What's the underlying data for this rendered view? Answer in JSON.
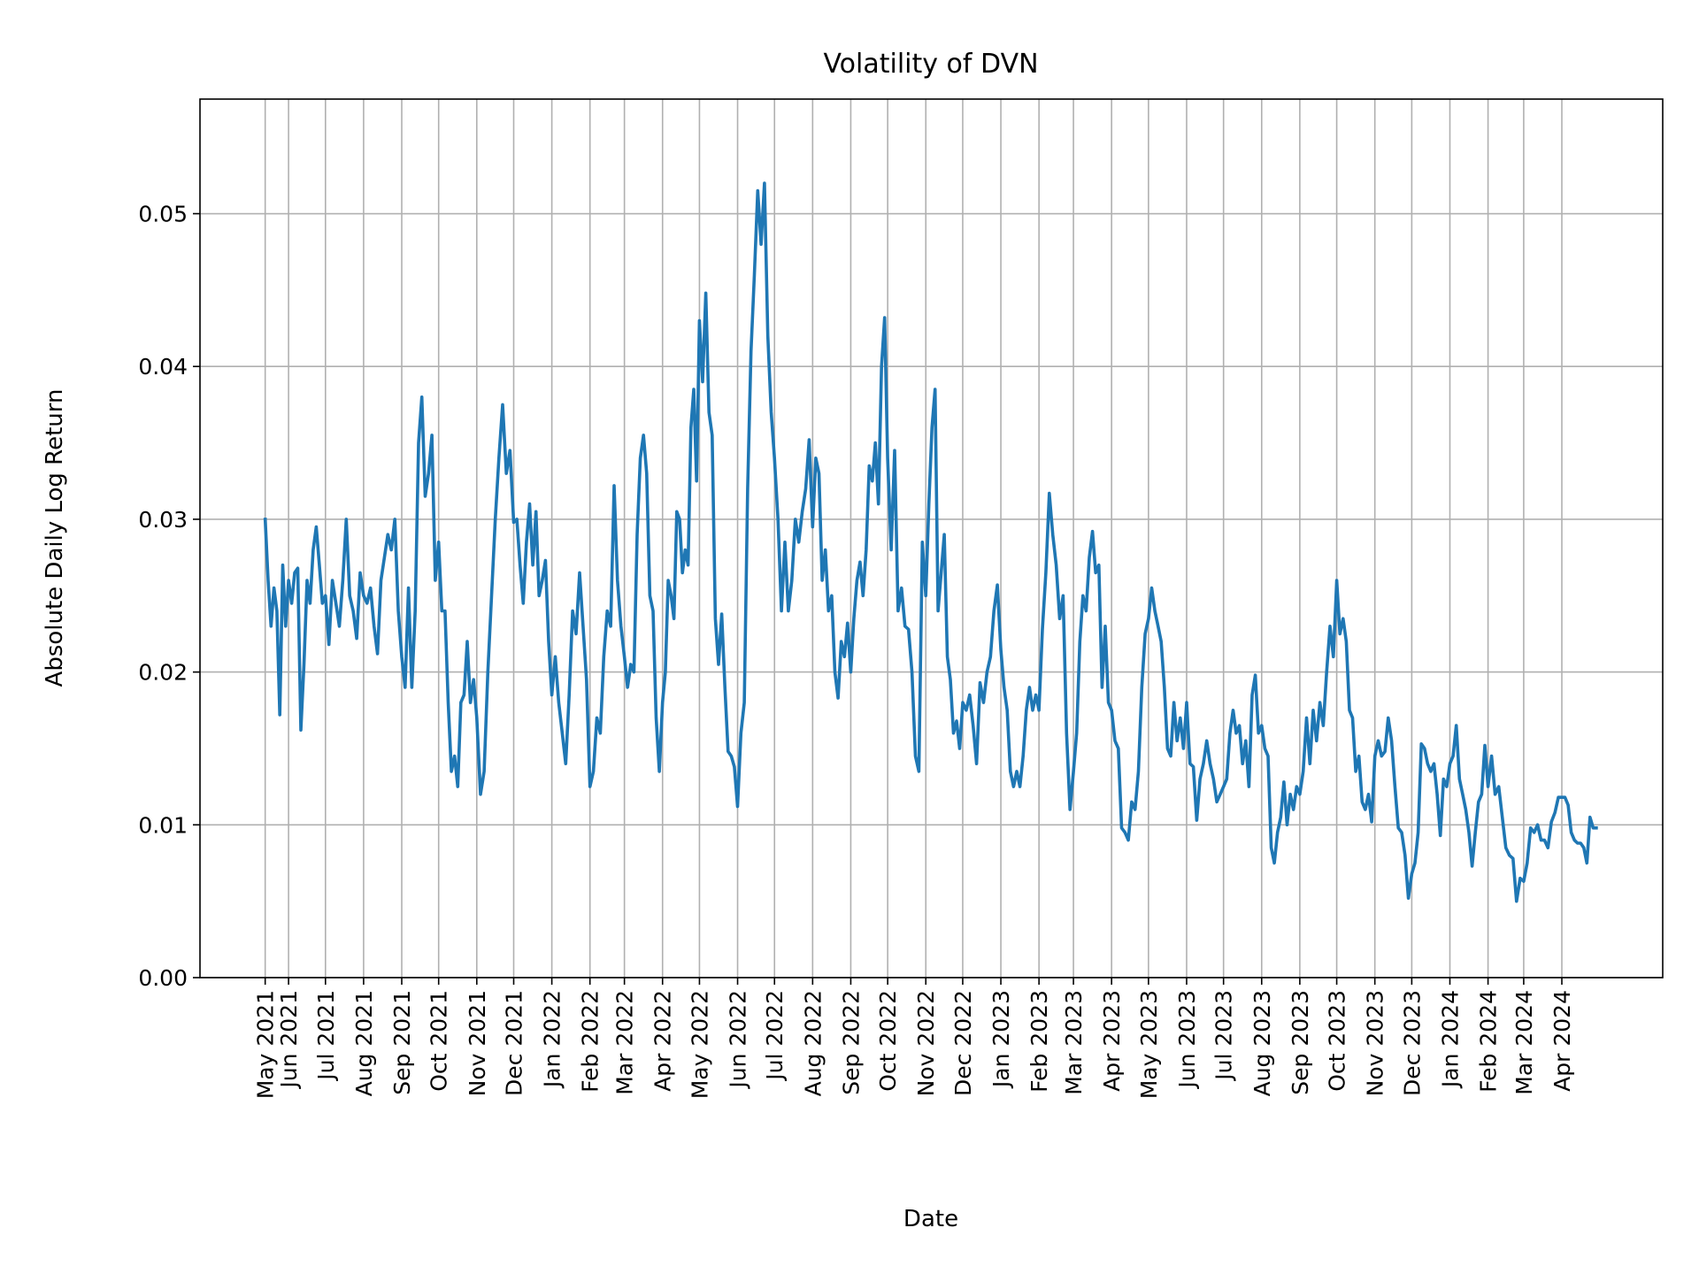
{
  "chart_data": {
    "type": "line",
    "title": "Volatility of DVN",
    "xlabel": "Date",
    "ylabel": "Absolute Daily Log Return",
    "xlim": [
      "2021-03-21",
      "2024-06-22"
    ],
    "ylim": [
      0,
      0.0575
    ],
    "grid": true,
    "colors": {
      "line": "#1f77b4",
      "grid": "#b0b0b0",
      "axes": "#000000"
    },
    "yticks": [
      0.0,
      0.01,
      0.02,
      0.03,
      0.04,
      0.05
    ],
    "ytick_labels": [
      "0.00",
      "0.01",
      "0.02",
      "0.03",
      "0.04",
      "0.05"
    ],
    "xticks": [
      "2021-05-13",
      "2021-06-01",
      "2021-07-01",
      "2021-08-01",
      "2021-09-01",
      "2021-10-01",
      "2021-11-01",
      "2021-12-01",
      "2022-01-01",
      "2022-02-01",
      "2022-03-01",
      "2022-04-01",
      "2022-05-01",
      "2022-06-01",
      "2022-07-01",
      "2022-08-01",
      "2022-09-01",
      "2022-10-01",
      "2022-11-01",
      "2022-12-01",
      "2023-01-01",
      "2023-02-01",
      "2023-03-01",
      "2023-04-01",
      "2023-05-01",
      "2023-06-01",
      "2023-07-01",
      "2023-08-01",
      "2023-09-01",
      "2023-10-01",
      "2023-11-01",
      "2023-12-01",
      "2024-01-01",
      "2024-02-01",
      "2024-03-01",
      "2024-04-01"
    ],
    "xtick_labels": [
      "May 2021",
      "Jun 2021",
      "Jul 2021",
      "Aug 2021",
      "Sep 2021",
      "Oct 2021",
      "Nov 2021",
      "Dec 2021",
      "Jan 2022",
      "Feb 2022",
      "Mar 2022",
      "Apr 2022",
      "May 2022",
      "Jun 2022",
      "Jul 2022",
      "Aug 2022",
      "Sep 2022",
      "Oct 2022",
      "Nov 2022",
      "Dec 2022",
      "Jan 2023",
      "Feb 2023",
      "Mar 2023",
      "Apr 2023",
      "May 2023",
      "Jun 2023",
      "Jul 2023",
      "Aug 2023",
      "Sep 2023",
      "Oct 2023",
      "Nov 2023",
      "Dec 2023",
      "Jan 2024",
      "Feb 2024",
      "Mar 2024",
      "Apr 2024"
    ],
    "first_date": "2021-05-13",
    "last_date": "2024-04-29",
    "series_by_month": [
      {
        "month": "2021-05",
        "values": [
          0.03,
          0.026,
          0.023,
          0.0255,
          0.024,
          0.0172,
          0.027,
          0.023
        ]
      },
      {
        "month": "2021-06",
        "values": [
          0.026,
          0.0245,
          0.0265,
          0.0268,
          0.0162,
          0.0205,
          0.026,
          0.0245,
          0.028,
          0.0295,
          0.027,
          0.0245
        ]
      },
      {
        "month": "2021-07",
        "values": [
          0.025,
          0.0218,
          0.026,
          0.0245,
          0.023,
          0.026,
          0.03,
          0.025,
          0.024,
          0.0222,
          0.0265
        ]
      },
      {
        "month": "2021-08",
        "values": [
          0.025,
          0.0245,
          0.0255,
          0.023,
          0.0212,
          0.026,
          0.0275,
          0.029,
          0.028,
          0.03,
          0.024
        ]
      },
      {
        "month": "2021-09",
        "values": [
          0.021,
          0.019,
          0.0255,
          0.019,
          0.024,
          0.035,
          0.038,
          0.0315,
          0.033,
          0.0355,
          0.026
        ]
      },
      {
        "month": "2021-10",
        "values": [
          0.0285,
          0.024,
          0.024,
          0.018,
          0.0135,
          0.0145,
          0.0125,
          0.018,
          0.0185,
          0.022,
          0.018,
          0.0195
        ]
      },
      {
        "month": "2021-11",
        "values": [
          0.017,
          0.012,
          0.0135,
          0.02,
          0.025,
          0.03,
          0.034,
          0.0375,
          0.033,
          0.0345
        ]
      },
      {
        "month": "2021-12",
        "values": [
          0.0298,
          0.03,
          0.027,
          0.0245,
          0.0285,
          0.031,
          0.027,
          0.0305,
          0.025,
          0.026,
          0.0273,
          0.022
        ]
      },
      {
        "month": "2022-01",
        "values": [
          0.0185,
          0.021,
          0.018,
          0.016,
          0.014,
          0.0185,
          0.024,
          0.0225,
          0.0265,
          0.023,
          0.0195
        ]
      },
      {
        "month": "2022-02",
        "values": [
          0.0125,
          0.0135,
          0.017,
          0.016,
          0.021,
          0.024,
          0.023,
          0.0322,
          0.026,
          0.023
        ]
      },
      {
        "month": "2022-03",
        "values": [
          0.021,
          0.019,
          0.0205,
          0.02,
          0.029,
          0.034,
          0.0355,
          0.033,
          0.025,
          0.024,
          0.017,
          0.0135
        ]
      },
      {
        "month": "2022-04",
        "values": [
          0.018,
          0.02,
          0.026,
          0.025,
          0.0235,
          0.0305,
          0.03,
          0.0265,
          0.028,
          0.027,
          0.036,
          0.0385,
          0.0325
        ]
      },
      {
        "month": "2022-05",
        "values": [
          0.043,
          0.039,
          0.0448,
          0.037,
          0.0355,
          0.0235,
          0.0205,
          0.0238,
          0.019,
          0.0148,
          0.0145,
          0.0138
        ]
      },
      {
        "month": "2022-06",
        "values": [
          0.0112,
          0.016,
          0.018,
          0.032,
          0.041,
          0.046,
          0.0515,
          0.048,
          0.052,
          0.042,
          0.037
        ]
      },
      {
        "month": "2022-07",
        "values": [
          0.034,
          0.03,
          0.024,
          0.0285,
          0.024,
          0.026,
          0.03,
          0.0285,
          0.0305,
          0.032,
          0.0352
        ]
      },
      {
        "month": "2022-08",
        "values": [
          0.0295,
          0.034,
          0.033,
          0.026,
          0.028,
          0.024,
          0.025,
          0.02,
          0.0183,
          0.022,
          0.021,
          0.0232
        ]
      },
      {
        "month": "2022-09",
        "values": [
          0.02,
          0.0235,
          0.026,
          0.0272,
          0.025,
          0.028,
          0.0335,
          0.0325,
          0.035,
          0.031,
          0.04,
          0.0432
        ]
      },
      {
        "month": "2022-10",
        "values": [
          0.034,
          0.028,
          0.0345,
          0.024,
          0.0255,
          0.023,
          0.0228,
          0.02,
          0.0145,
          0.0135,
          0.0285
        ]
      },
      {
        "month": "2022-11",
        "values": [
          0.025,
          0.031,
          0.036,
          0.0385,
          0.024,
          0.0265,
          0.029,
          0.021,
          0.0195,
          0.016,
          0.0168,
          0.015
        ]
      },
      {
        "month": "2022-12",
        "values": [
          0.018,
          0.0175,
          0.0185,
          0.0165,
          0.014,
          0.0193,
          0.018,
          0.02,
          0.021,
          0.024,
          0.0257
        ]
      },
      {
        "month": "2023-01",
        "values": [
          0.0215,
          0.019,
          0.0175,
          0.0135,
          0.0125,
          0.0135,
          0.0125,
          0.0145,
          0.0175,
          0.019,
          0.0175,
          0.0185
        ]
      },
      {
        "month": "2023-02",
        "values": [
          0.0175,
          0.0228,
          0.0265,
          0.0317,
          0.029,
          0.027,
          0.0235,
          0.025,
          0.016,
          0.011
        ]
      },
      {
        "month": "2023-03",
        "values": [
          0.0135,
          0.016,
          0.022,
          0.025,
          0.024,
          0.0275,
          0.0292,
          0.0265,
          0.027,
          0.019,
          0.023,
          0.018
        ]
      },
      {
        "month": "2023-04",
        "values": [
          0.0175,
          0.0155,
          0.015,
          0.0098,
          0.0095,
          0.009,
          0.0115,
          0.011,
          0.0135,
          0.019,
          0.0225
        ]
      },
      {
        "month": "2023-05",
        "values": [
          0.0235,
          0.0255,
          0.024,
          0.023,
          0.022,
          0.019,
          0.015,
          0.0145,
          0.018,
          0.0155,
          0.017,
          0.015
        ]
      },
      {
        "month": "2023-06",
        "values": [
          0.018,
          0.014,
          0.0138,
          0.0103,
          0.013,
          0.014,
          0.0155,
          0.014,
          0.013,
          0.0115,
          0.012
        ]
      },
      {
        "month": "2023-07",
        "values": [
          0.0125,
          0.013,
          0.016,
          0.0175,
          0.016,
          0.0165,
          0.014,
          0.0155,
          0.0125,
          0.0185,
          0.0198,
          0.016
        ]
      },
      {
        "month": "2023-08",
        "values": [
          0.0165,
          0.015,
          0.0145,
          0.0085,
          0.0075,
          0.0095,
          0.0105,
          0.0128,
          0.01,
          0.012,
          0.011,
          0.0125
        ]
      },
      {
        "month": "2023-09",
        "values": [
          0.012,
          0.0135,
          0.017,
          0.014,
          0.0175,
          0.0155,
          0.018,
          0.0165,
          0.02,
          0.023,
          0.021
        ]
      },
      {
        "month": "2023-10",
        "values": [
          0.026,
          0.0225,
          0.0235,
          0.022,
          0.0175,
          0.017,
          0.0135,
          0.0145,
          0.0115,
          0.011,
          0.012,
          0.0102
        ]
      },
      {
        "month": "2023-11",
        "values": [
          0.0145,
          0.0155,
          0.0145,
          0.0148,
          0.017,
          0.0155,
          0.0125,
          0.0098,
          0.0095,
          0.008,
          0.0052
        ]
      },
      {
        "month": "2023-12",
        "values": [
          0.0068,
          0.0075,
          0.0095,
          0.0153,
          0.015,
          0.014,
          0.0135,
          0.014,
          0.012,
          0.0093,
          0.013,
          0.0125
        ]
      },
      {
        "month": "2024-01",
        "values": [
          0.014,
          0.0145,
          0.0165,
          0.013,
          0.012,
          0.011,
          0.0095,
          0.0073,
          0.0095,
          0.0115,
          0.012,
          0.0152
        ]
      },
      {
        "month": "2024-02",
        "values": [
          0.0125,
          0.0145,
          0.012,
          0.0125,
          0.0105,
          0.0085,
          0.008,
          0.0078,
          0.005,
          0.0065
        ]
      },
      {
        "month": "2024-03",
        "values": [
          0.0063,
          0.0075,
          0.0098,
          0.0095,
          0.01,
          0.009,
          0.009,
          0.0085,
          0.0102,
          0.0108,
          0.0118
        ]
      },
      {
        "month": "2024-04",
        "values": [
          0.0118,
          0.0118,
          0.0113,
          0.0095,
          0.009,
          0.0088,
          0.0088,
          0.0085,
          0.0075,
          0.0105,
          0.0098,
          0.0098
        ]
      }
    ]
  }
}
